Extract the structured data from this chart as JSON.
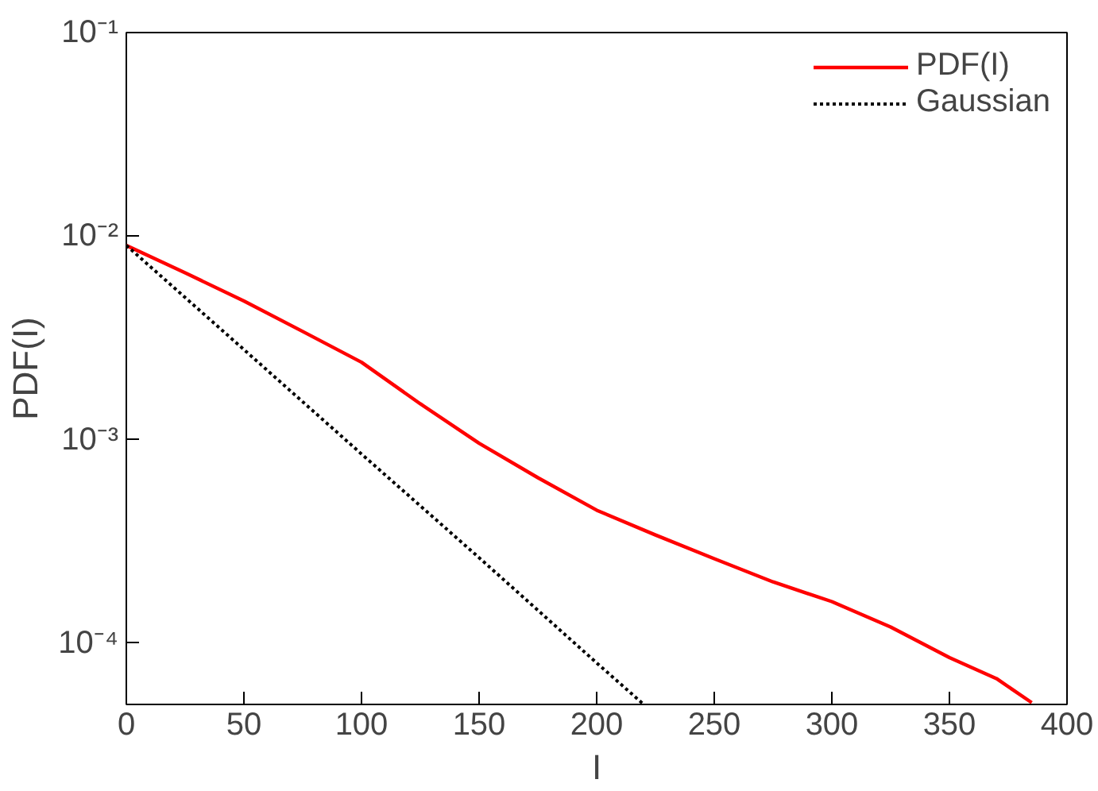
{
  "chart_data": {
    "type": "line",
    "xlabel": "I",
    "ylabel": "PDF(I)",
    "log": "y",
    "grid": false,
    "legend": "top right",
    "marker": "none",
    "xlim": [
      0,
      400
    ],
    "xticks": [
      0,
      50,
      100,
      150,
      200,
      250,
      300,
      350,
      400
    ],
    "ylim": [
      5e-05,
      0.1
    ],
    "yticks": [
      {
        "value": 0.0001,
        "label": "10⁻⁴"
      },
      {
        "value": 0.001,
        "label": "10⁻³"
      },
      {
        "value": 0.01,
        "label": "10⁻²"
      },
      {
        "value": 0.1,
        "label": "10⁻¹"
      }
    ],
    "series": [
      {
        "name": "PDF(I)",
        "color": "#ff0000",
        "line_style": "solid",
        "x": [
          0,
          25,
          50,
          75,
          100,
          125,
          150,
          175,
          200,
          225,
          250,
          275,
          300,
          325,
          350,
          370,
          385
        ],
        "values": [
          0.009,
          0.0066,
          0.0048,
          0.0034,
          0.0024,
          0.0015,
          0.00096,
          0.00065,
          0.00045,
          0.00034,
          0.00026,
          0.0002,
          0.00016,
          0.00012,
          8.5e-05,
          6.7e-05,
          5.1e-05
        ]
      },
      {
        "name": "Gaussian",
        "color": "#000000",
        "line_style": "dotted",
        "x": [
          0,
          50,
          100,
          150,
          200,
          220
        ],
        "values": [
          0.009,
          0.00277,
          0.00085,
          0.000263,
          8e-05,
          5e-05
        ]
      }
    ]
  }
}
